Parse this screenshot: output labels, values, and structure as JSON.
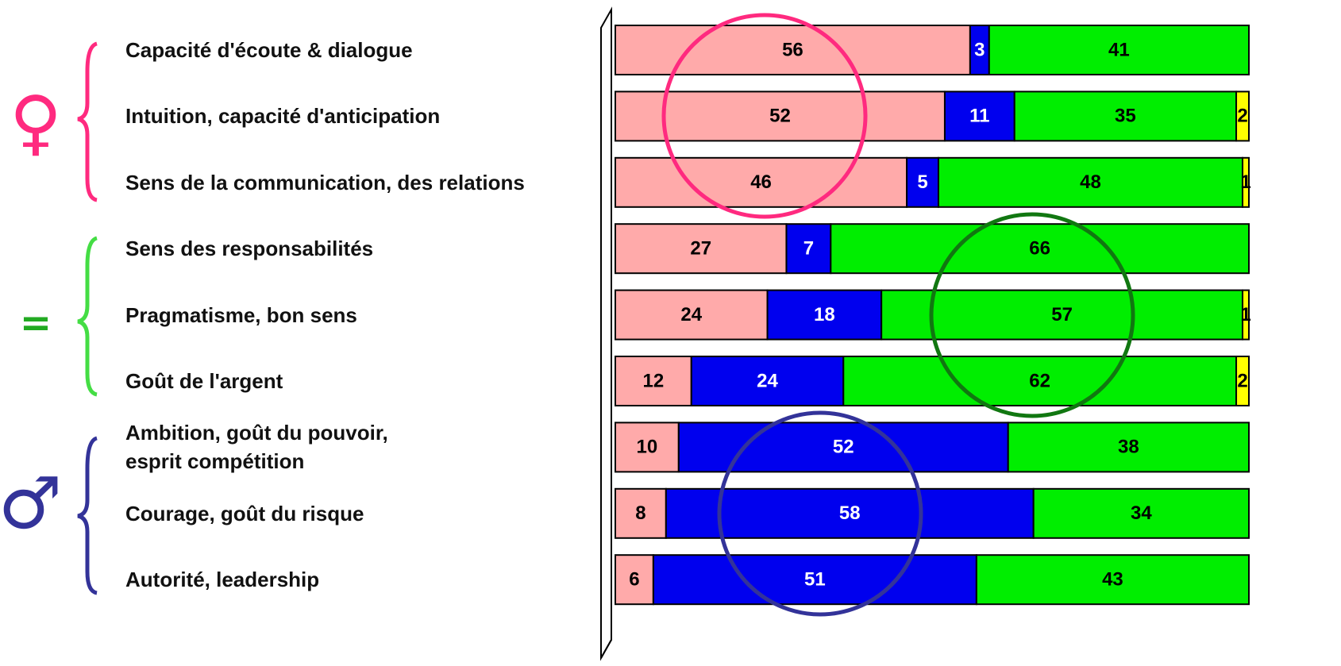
{
  "chart_data": {
    "type": "stacked-bar-horizontal",
    "categories": [
      "Capacité d'écoute & dialogue",
      "Intuition, capacité d'anticipation",
      "Sens de la communication, des relations",
      "Sens des responsabilités",
      "Pragmatisme, bon sens",
      "Goût de l'argent",
      "Ambition, goût du pouvoir,\nesprit compétition",
      "Courage, goût du risque",
      "Autorité, leadership"
    ],
    "groups": [
      {
        "symbol": "♀",
        "color": "#ff2a7f"
      },
      {
        "symbol": "=",
        "color": "#22aa22"
      },
      {
        "symbol": "♂",
        "color": "#333399"
      }
    ],
    "xlim": [
      0,
      100
    ],
    "series": [
      {
        "color": "#ffaaaa",
        "values": [
          56,
          52,
          46,
          27,
          24,
          12,
          10,
          8,
          6
        ]
      },
      {
        "color": "#0000ee",
        "values": [
          3,
          11,
          5,
          7,
          18,
          24,
          52,
          58,
          51
        ]
      },
      {
        "color": "#00ee00",
        "values": [
          41,
          35,
          48,
          66,
          57,
          62,
          38,
          34,
          43
        ]
      },
      {
        "color": "#ffff00",
        "values": [
          0,
          2,
          1,
          0,
          1,
          2,
          0,
          0,
          0
        ]
      }
    ]
  }
}
